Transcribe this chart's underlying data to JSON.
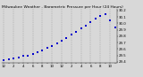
{
  "title": "Milwaukee Weather - Barometric Pressure per Hour (24 Hours)",
  "hours": [
    0,
    1,
    2,
    3,
    4,
    5,
    6,
    7,
    8,
    9,
    10,
    11,
    12,
    13,
    14,
    15,
    16,
    17,
    18,
    19,
    20,
    21,
    22,
    23
  ],
  "hour_labels": [
    "12",
    "",
    "2",
    "",
    "4",
    "",
    "6",
    "",
    "8",
    "",
    "10",
    "",
    "12",
    "",
    "2",
    "",
    "4",
    "",
    "6",
    "",
    "8",
    "",
    "10",
    ""
  ],
  "pressure": [
    29.42,
    29.44,
    29.46,
    29.47,
    29.49,
    29.5,
    29.52,
    29.55,
    29.58,
    29.62,
    29.65,
    29.69,
    29.73,
    29.77,
    29.82,
    29.87,
    29.92,
    29.97,
    30.02,
    30.07,
    30.11,
    30.14,
    30.05,
    29.93
  ],
  "ylim": [
    29.38,
    30.22
  ],
  "ytick_vals": [
    29.4,
    29.5,
    29.6,
    29.7,
    29.8,
    29.9,
    30.0,
    30.1,
    30.2
  ],
  "dot_color": "#0000cc",
  "bg_color": "#d8d8d8",
  "plot_bg_color": "#d8d8d8",
  "grid_color": "#888888",
  "title_color": "#000000",
  "tick_color": "#000000",
  "dot_size": 1.5,
  "title_fontsize": 3.2,
  "tick_fontsize": 2.8,
  "grid_positions": [
    0,
    2,
    4,
    6,
    8,
    10,
    12,
    14,
    16,
    18,
    20,
    22
  ]
}
